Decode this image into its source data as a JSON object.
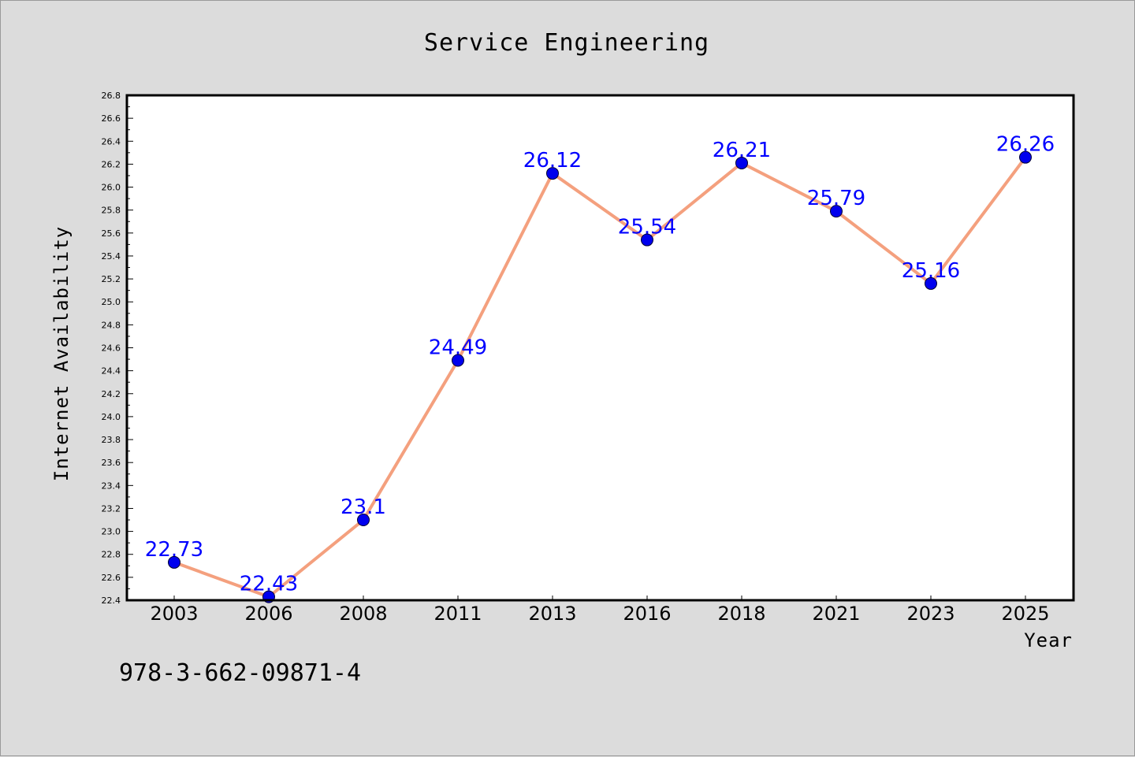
{
  "chart_data": {
    "type": "line",
    "title": "Service Engineering",
    "xlabel": "Year",
    "ylabel": "Internet Availability",
    "categories": [
      "2003",
      "2006",
      "2008",
      "2011",
      "2013",
      "2016",
      "2018",
      "2021",
      "2023",
      "2025"
    ],
    "series": [
      {
        "values": [
          22.73,
          22.43,
          23.1,
          24.49,
          26.12,
          25.54,
          26.21,
          25.79,
          25.16,
          26.26
        ],
        "line_color": "#f4a07e",
        "marker_color": "#0000ee"
      }
    ],
    "data_labels": [
      "22.73",
      "22.43",
      "23.1",
      "24.49",
      "26.12",
      "25.54",
      "26.21",
      "25.79",
      "25.16",
      "26.26"
    ],
    "ylim": [
      22.4,
      26.8
    ],
    "yticks": [
      "22.4",
      "22.6",
      "22.8",
      "23.0",
      "23.2",
      "23.4",
      "23.6",
      "23.8",
      "24.0",
      "24.2",
      "24.4",
      "24.6",
      "24.8",
      "25.0",
      "25.2",
      "25.4",
      "25.6",
      "25.8",
      "26.0",
      "26.2",
      "26.4",
      "26.6",
      "26.8"
    ],
    "grid": false,
    "data_label_color": "#0000ff"
  },
  "footer": {
    "isbn": "978-3-662-09871-4"
  }
}
